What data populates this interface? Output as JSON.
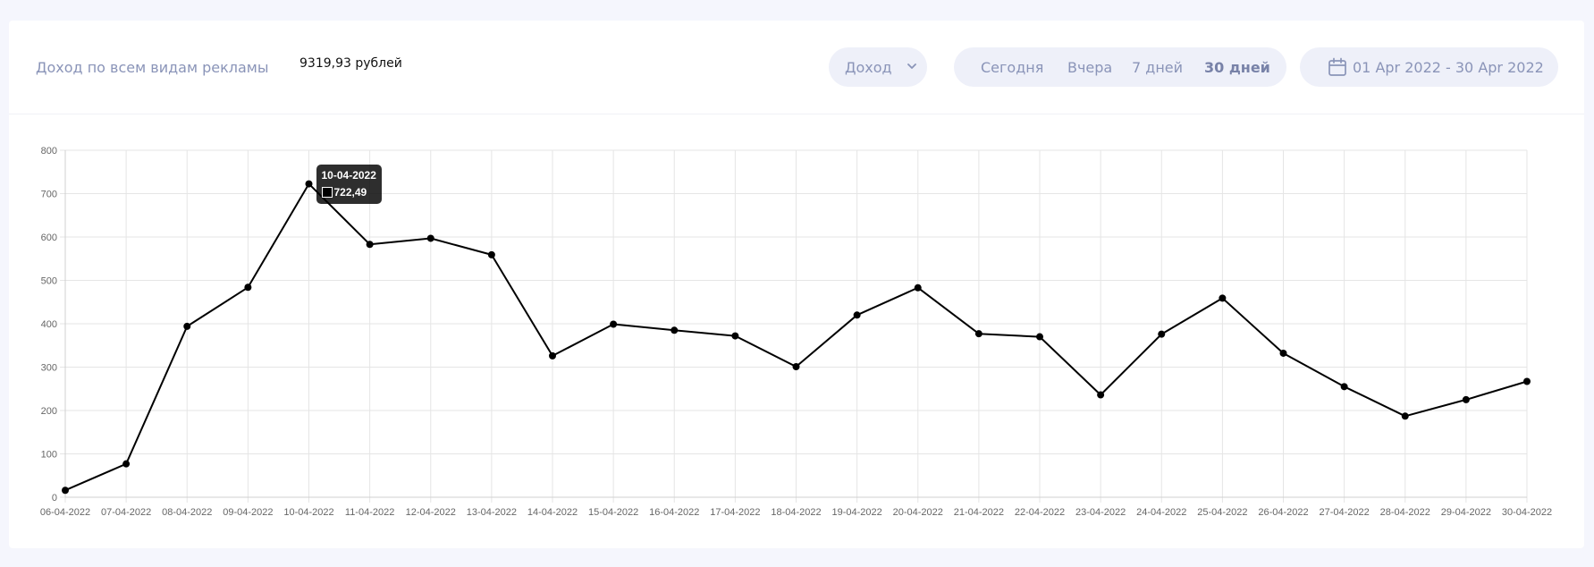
{
  "header": {
    "revenue_label": "Доход по всем видам рекламы",
    "revenue_value": "9319,93 рублей",
    "metric_select": {
      "value": "Доход"
    },
    "periods": [
      {
        "label": "Сегодня",
        "active": false
      },
      {
        "label": "Вчера",
        "active": false
      },
      {
        "label": "7 дней",
        "active": false
      },
      {
        "label": "30 дней",
        "active": true
      }
    ],
    "date_range": "01 Apr 2022 - 30 Apr 2022"
  },
  "tooltip": {
    "title": "10-04-2022",
    "value": "722,49"
  },
  "colors": {
    "background": "#f5f6fd",
    "muted_text": "#8a94b8",
    "pill_bg": "#eef0f9",
    "line": "#000000",
    "grid": "#e5e5e5"
  },
  "chart_data": {
    "type": "line",
    "x": [
      "06-04-2022",
      "07-04-2022",
      "08-04-2022",
      "09-04-2022",
      "10-04-2022",
      "11-04-2022",
      "12-04-2022",
      "13-04-2022",
      "14-04-2022",
      "15-04-2022",
      "16-04-2022",
      "17-04-2022",
      "18-04-2022",
      "19-04-2022",
      "20-04-2022",
      "21-04-2022",
      "22-04-2022",
      "23-04-2022",
      "24-04-2022",
      "25-04-2022",
      "26-04-2022",
      "27-04-2022",
      "28-04-2022",
      "29-04-2022",
      "30-04-2022"
    ],
    "series": [
      {
        "values": [
          16,
          77,
          394,
          484,
          722.49,
          583,
          597,
          559,
          326,
          399,
          385,
          372,
          301,
          420,
          483,
          377,
          370,
          236,
          376,
          459,
          332,
          255,
          187,
          225,
          267
        ]
      }
    ],
    "ylim": [
      0,
      800
    ],
    "yticks": [
      0,
      100,
      200,
      300,
      400,
      500,
      600,
      700,
      800
    ],
    "grid": true,
    "legend": "none"
  }
}
